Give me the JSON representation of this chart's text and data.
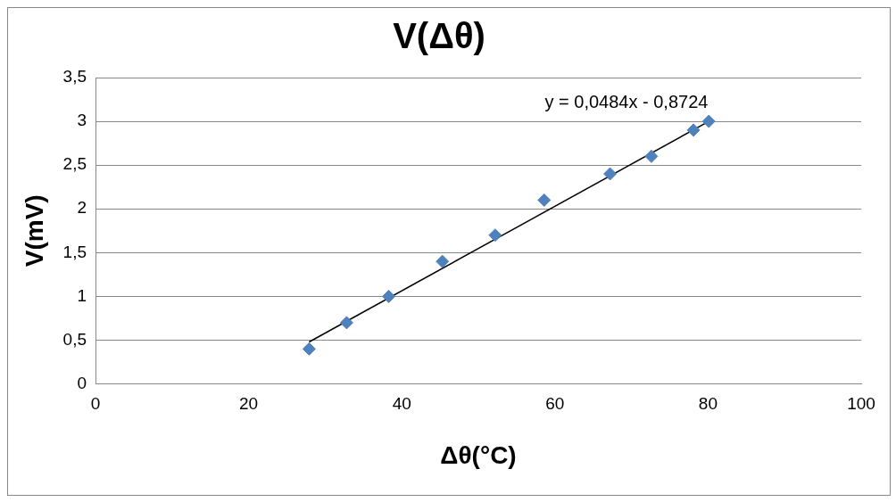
{
  "chart_data": {
    "type": "scatter",
    "title": "V(Δθ)",
    "xlabel": "Δθ(°C)",
    "ylabel": "V(mV)",
    "series": [
      {
        "type": "scatter",
        "color": "#4f81bd",
        "marker": "diamond",
        "x": [
          27.9,
          32.8,
          38.3,
          45.3,
          52.2,
          58.6,
          67.2,
          72.6,
          78.1,
          80.1
        ],
        "values": [
          0.4,
          0.7,
          1.0,
          1.4,
          1.7,
          2.1,
          2.4,
          2.6,
          2.9,
          3.0
        ]
      },
      {
        "type": "line",
        "color": "#000000",
        "marker": "none",
        "x": [
          27.9,
          80.1
        ],
        "values": [
          0.48,
          3.0
        ]
      }
    ],
    "xlim": [
      0,
      100
    ],
    "xticks": [
      0,
      20,
      40,
      60,
      80,
      100
    ],
    "ylim": [
      0,
      3.5
    ],
    "yticks": [
      0,
      {
        "value": 0.5,
        "label": "0,5"
      },
      1,
      {
        "value": 1.5,
        "label": "1,5"
      },
      2,
      {
        "value": 2.5,
        "label": "2,5"
      },
      3,
      {
        "value": 3.5,
        "label": "3,5"
      }
    ],
    "grid": "y",
    "legend": false,
    "annotations": [
      "y = 0,0484x - 0,8724"
    ]
  }
}
